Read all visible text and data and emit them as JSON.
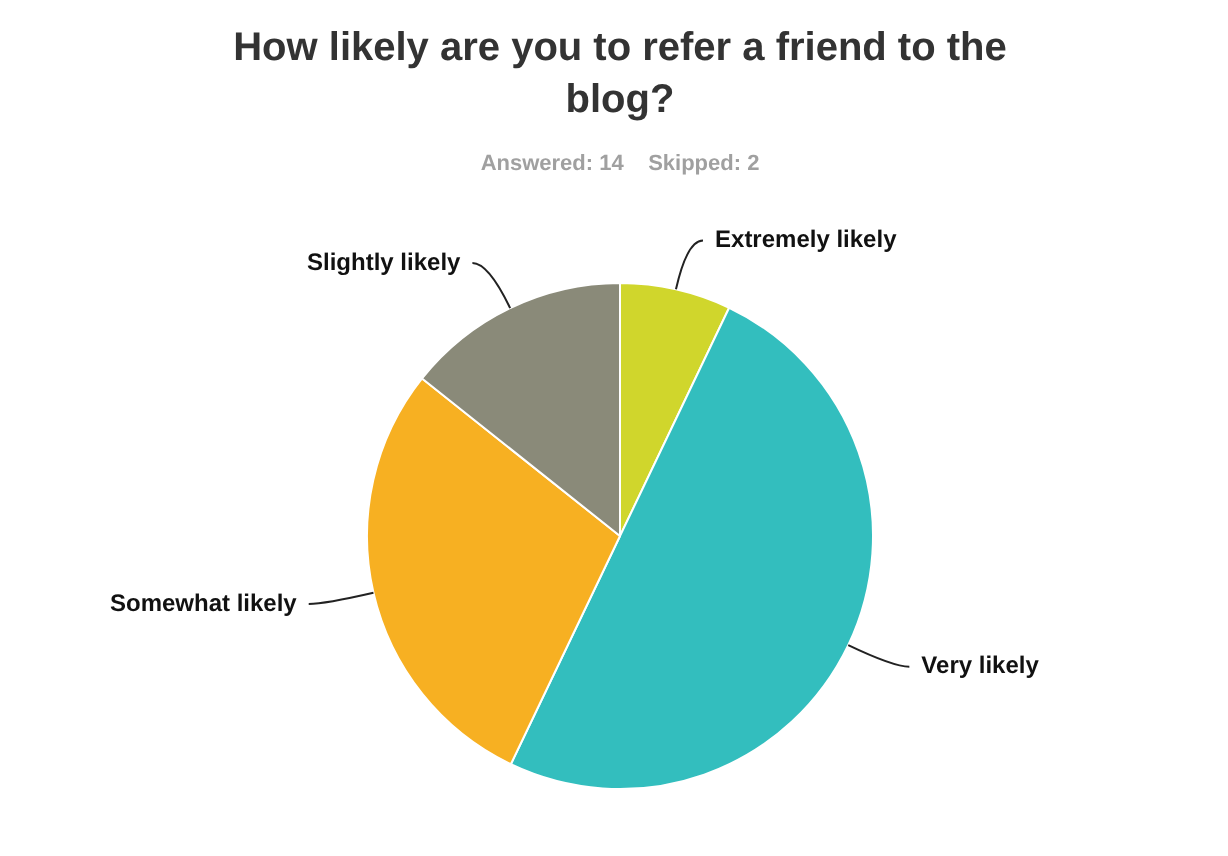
{
  "chart_data": {
    "type": "pie",
    "title": "How likely are you to refer a friend to the blog?",
    "subtitle": "Answered: 14    Skipped: 2",
    "categories": [
      "Extremely likely",
      "Very likely",
      "Somewhat likely",
      "Slightly likely"
    ],
    "values": [
      7.1,
      50,
      28.6,
      14.3
    ],
    "colors": [
      "#d0d62c",
      "#33bebe",
      "#f7b022",
      "#8a8a79"
    ]
  }
}
